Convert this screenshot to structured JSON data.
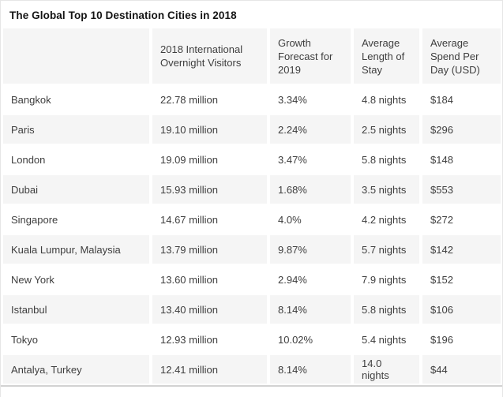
{
  "title": "The Global Top 10 Destination Cities in 2018",
  "colors": {
    "background": "#ffffff",
    "header_and_stripe_background": "#f5f5f5",
    "body_text": "#3e3e3e",
    "title_text": "#141414",
    "outer_border": "#e6e6e6",
    "bottom_rule": "#d2d2d2"
  },
  "chart_data": {
    "type": "table",
    "title": "The Global Top 10 Destination Cities in 2018",
    "columns": [
      "",
      "2018 International Overnight Visitors",
      "Growth Forecast for 2019",
      "Average Length of Stay",
      "Average Spend Per Day (USD)"
    ],
    "rows": [
      [
        "Bangkok",
        "22.78 million",
        "3.34%",
        "4.8 nights",
        "$184"
      ],
      [
        "Paris",
        "19.10 million",
        "2.24%",
        "2.5 nights",
        "$296"
      ],
      [
        "London",
        "19.09 million",
        "3.47%",
        "5.8 nights",
        "$148"
      ],
      [
        "Dubai",
        "15.93 million",
        "1.68%",
        "3.5 nights",
        "$553"
      ],
      [
        "Singapore",
        "14.67 million",
        "4.0%",
        "4.2 nights",
        "$272"
      ],
      [
        "Kuala Lumpur, Malaysia",
        "13.79 million",
        "9.87%",
        "5.7 nights",
        "$142"
      ],
      [
        "New York",
        "13.60 million",
        "2.94%",
        "7.9 nights",
        "$152"
      ],
      [
        "Istanbul",
        "13.40 million",
        "8.14%",
        "5.8 nights",
        "$106"
      ],
      [
        "Tokyo",
        "12.93 million",
        "10.02%",
        "5.4 nights",
        "$196"
      ],
      [
        "Antalya, Turkey",
        "12.41 million",
        "8.14%",
        "14.0 nights",
        "$44"
      ]
    ],
    "series_numeric": {
      "cities": [
        "Bangkok",
        "Paris",
        "London",
        "Dubai",
        "Singapore",
        "Kuala Lumpur, Malaysia",
        "New York",
        "Istanbul",
        "Tokyo",
        "Antalya, Turkey"
      ],
      "visitors_million_2018": [
        22.78,
        19.1,
        19.09,
        15.93,
        14.67,
        13.79,
        13.6,
        13.4,
        12.93,
        12.41
      ],
      "growth_forecast_2019_pct": [
        3.34,
        2.24,
        3.47,
        1.68,
        4.0,
        9.87,
        2.94,
        8.14,
        10.02,
        8.14
      ],
      "avg_length_of_stay_nights": [
        4.8,
        2.5,
        5.8,
        3.5,
        4.2,
        5.7,
        7.9,
        5.8,
        5.4,
        14.0
      ],
      "avg_spend_per_day_usd": [
        184,
        296,
        148,
        553,
        272,
        142,
        152,
        106,
        196,
        44
      ]
    },
    "layout": {
      "header_background": "#f5f5f5",
      "row_striping": "even rows shaded",
      "grid": "white gaps between columns and rows"
    }
  }
}
